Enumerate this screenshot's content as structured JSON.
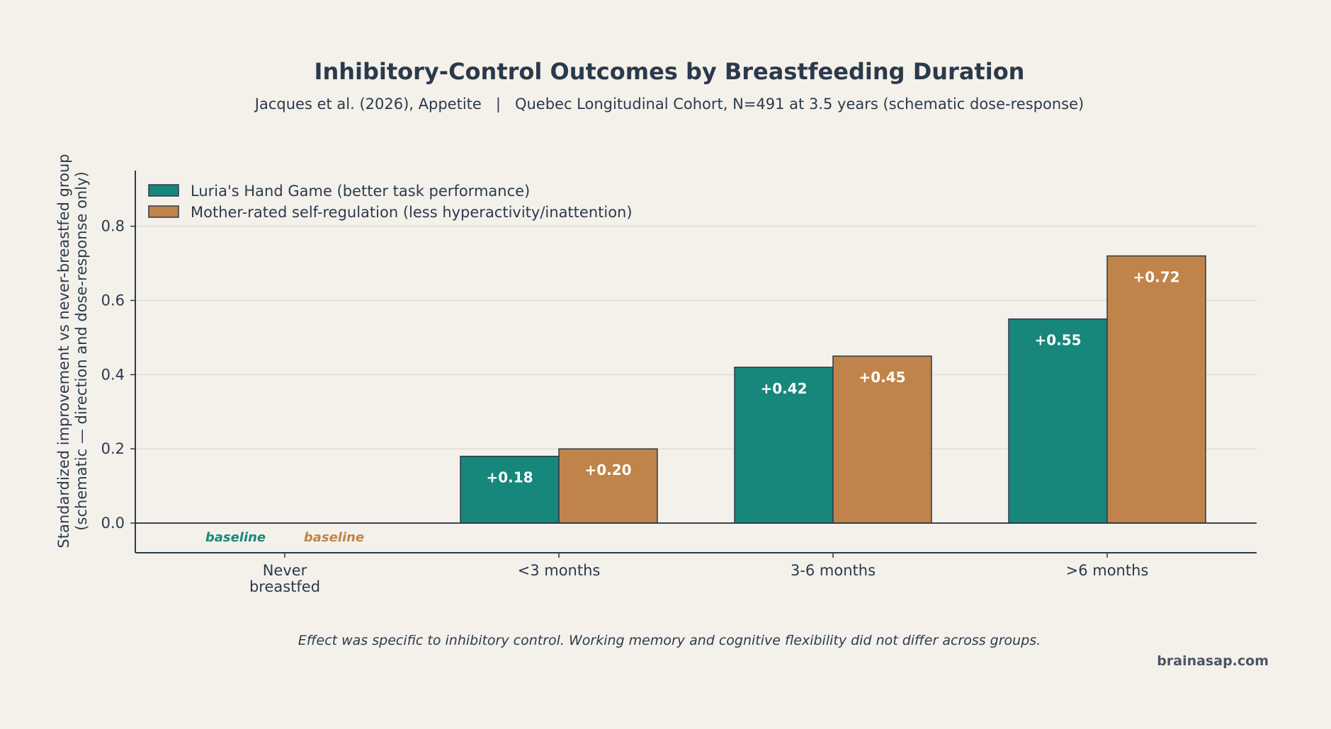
{
  "chart_data": {
    "type": "bar",
    "title": "Inhibitory-Control Outcomes by Breastfeeding Duration",
    "subtitle": "Jacques et al. (2026), Appetite   |   Quebec Longitudinal Cohort, N=491 at 3.5 years (schematic dose-response)",
    "ylabel_lines": [
      "Standardized improvement vs never-breastfed group",
      "(schematic — direction and dose-response only)"
    ],
    "xlabel": "",
    "categories": [
      [
        "Never",
        "breastfed"
      ],
      [
        "<3 months"
      ],
      [
        "3-6 months"
      ],
      [
        ">6 months"
      ]
    ],
    "ylim": [
      -0.08,
      0.95
    ],
    "yticks": [
      0.0,
      0.2,
      0.4,
      0.6,
      0.8
    ],
    "ytick_labels": [
      "0.0",
      "0.2",
      "0.4",
      "0.6",
      "0.8"
    ],
    "grid": true,
    "legend_position": "top-left",
    "series": [
      {
        "name": "Luria's Hand Game (better task performance)",
        "color": "#17877b",
        "values": [
          0.0,
          0.18,
          0.42,
          0.55
        ],
        "labels": [
          "baseline",
          "+0.18",
          "+0.42",
          "+0.55"
        ]
      },
      {
        "name": "Mother-rated self-regulation (less hyperactivity/inattention)",
        "color": "#c0844a",
        "values": [
          0.0,
          0.2,
          0.45,
          0.72
        ],
        "labels": [
          "baseline",
          "+0.20",
          "+0.45",
          "+0.72"
        ]
      }
    ],
    "footnote": "Effect was specific to inhibitory control. Working memory and cognitive flexibility did not differ across groups.",
    "credit": "brainasap.com"
  }
}
